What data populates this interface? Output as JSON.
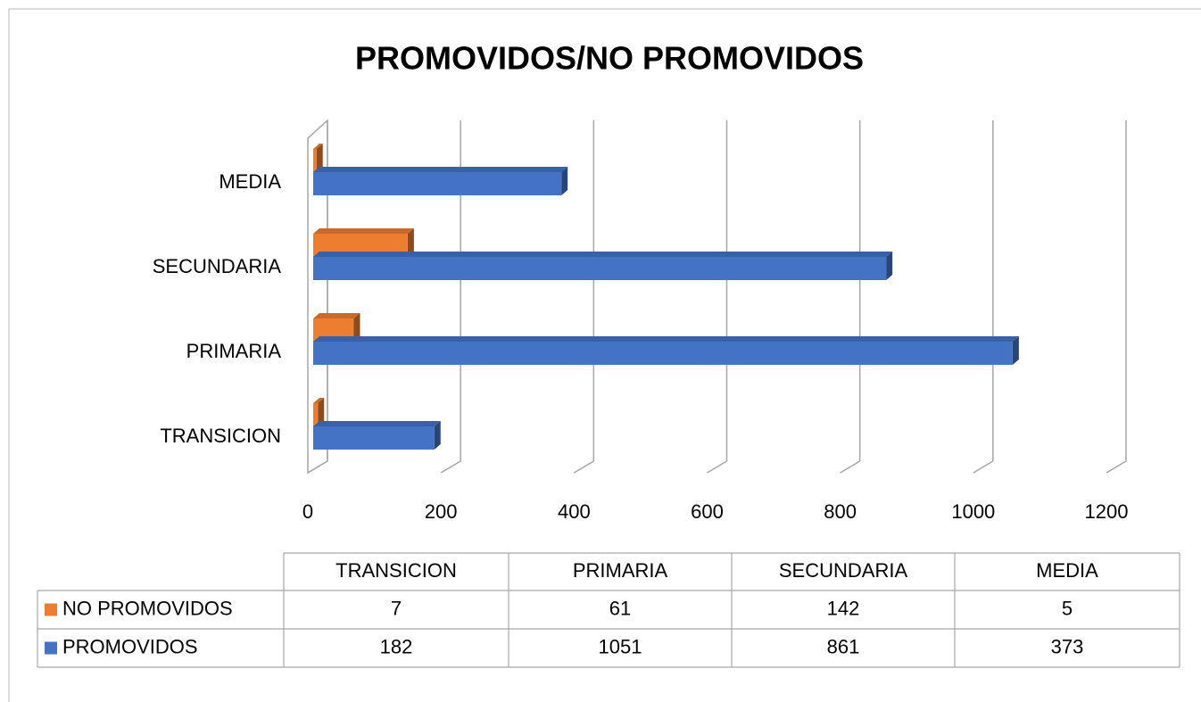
{
  "chart_data": {
    "type": "bar3d_horizontal",
    "title": "PROMOVIDOS/NO PROMOVIDOS",
    "categories": [
      "TRANSICION",
      "PRIMARIA",
      "SECUNDARIA",
      "MEDIA"
    ],
    "series": [
      {
        "name": "NO PROMOVIDOS",
        "color": "#ed7d31",
        "values": [
          7,
          61,
          142,
          5
        ]
      },
      {
        "name": "PROMOVIDOS",
        "color": "#4472c4",
        "values": [
          182,
          1051,
          861,
          373
        ]
      }
    ],
    "xlim": [
      0,
      1200
    ],
    "xticks": [
      0,
      200,
      400,
      600,
      800,
      1000,
      1200
    ],
    "grid": true,
    "data_table": true
  }
}
